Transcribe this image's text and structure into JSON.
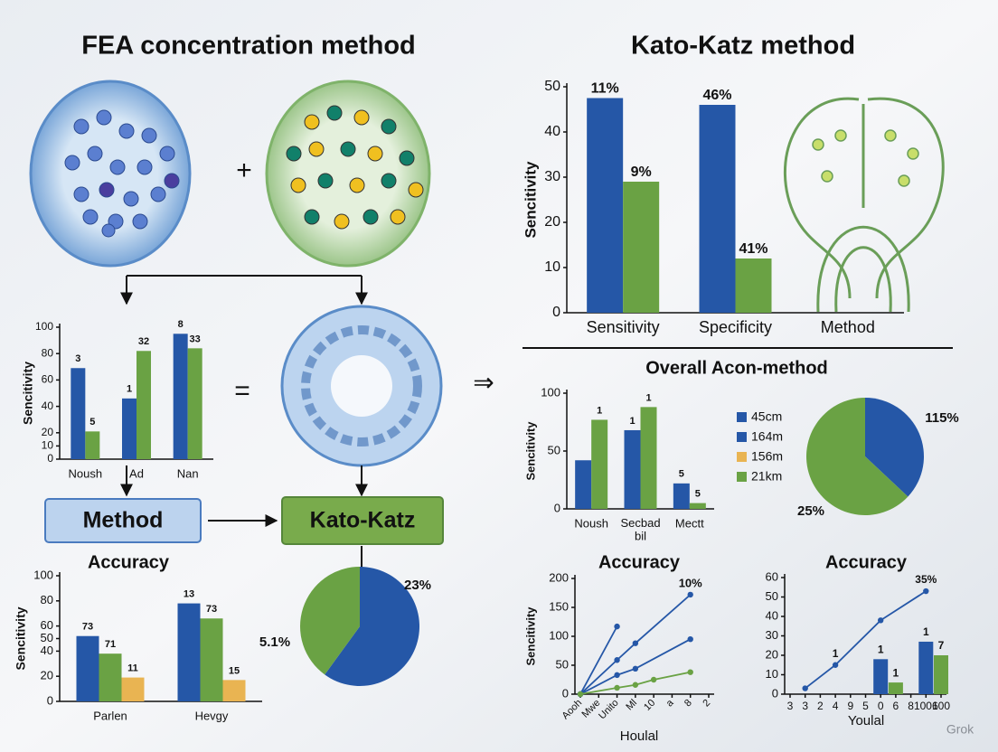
{
  "headings": {
    "left": "FEA concentration method",
    "right": "Kato-Katz method"
  },
  "symbols": {
    "plus": "+",
    "equals": "=",
    "arrow": "⇒"
  },
  "boxes": {
    "method": "Method",
    "kato_katz": "Kato-Katz"
  },
  "watermark": "Grok",
  "chart_data": [
    {
      "type": "bar",
      "y_label": "Sencitivity",
      "categories": [
        "Sensitivity",
        "Specificity",
        "Method"
      ],
      "ylim": [
        0,
        50
      ],
      "yticks": [
        0,
        10,
        20,
        30,
        40,
        50
      ],
      "series": [
        {
          "color": "#2557a7",
          "values": [
            47.5,
            46,
            null
          ],
          "notes": [
            "11%",
            "46%",
            null
          ]
        },
        {
          "color": "#6aa244",
          "values": [
            29,
            12,
            null
          ],
          "notes": [
            "9%",
            "41%",
            null
          ]
        }
      ]
    },
    {
      "type": "bar",
      "y_label": "Sencitivity",
      "categories": [
        "Noush",
        "Ad",
        "Nan"
      ],
      "ylim": [
        0,
        100
      ],
      "yticks": [
        0,
        10,
        20,
        40,
        60,
        80,
        100
      ],
      "series": [
        {
          "color": "#2557a7",
          "values": [
            69,
            46,
            95
          ],
          "notes": [
            "3",
            "1",
            "8"
          ]
        },
        {
          "color": "#6aa244",
          "values": [
            21,
            82,
            84
          ],
          "notes": [
            "5",
            "32",
            "33"
          ]
        }
      ]
    },
    {
      "type": "bar",
      "title": "Accuracy",
      "y_label": "Sencitivity",
      "categories": [
        "Parlen",
        "Hevgy"
      ],
      "ylim": [
        0,
        100
      ],
      "yticks": [
        0,
        20,
        40,
        50,
        60,
        80,
        100
      ],
      "series": [
        {
          "color": "#2557a7",
          "values": [
            52,
            78
          ],
          "notes": [
            "73",
            "13"
          ]
        },
        {
          "color": "#6aa244",
          "values": [
            38,
            66
          ],
          "notes": [
            "71",
            "73"
          ]
        },
        {
          "color": "#e9b452",
          "values": [
            19,
            17
          ],
          "notes": [
            "11",
            "15"
          ]
        }
      ]
    },
    {
      "type": "bar",
      "title": "Overall Acon-method",
      "y_label": "Sencitivity",
      "categories": [
        "Noush",
        "Secbad\nbil",
        "Mectt"
      ],
      "ylim": [
        0,
        100
      ],
      "yticks": [
        0,
        50,
        100
      ],
      "series": [
        {
          "color": "#2557a7",
          "values": [
            42,
            68,
            22
          ],
          "notes": [
            null,
            "1",
            "5"
          ]
        },
        {
          "color": "#6aa244",
          "values": [
            77,
            88,
            5
          ],
          "notes": [
            "1",
            "1",
            "5"
          ]
        }
      ],
      "legend": [
        {
          "label": "45cm",
          "color": "#2557a7"
        },
        {
          "label": "164m",
          "color": "#2557a7"
        },
        {
          "label": "156m",
          "color": "#e9b452"
        },
        {
          "label": "21km",
          "color": "#6aa244"
        }
      ]
    },
    {
      "type": "pie",
      "values": [
        37,
        63
      ],
      "colors": [
        "#2557a7",
        "#6aa244"
      ],
      "notes": [
        "115%",
        "25%"
      ]
    },
    {
      "type": "pie",
      "values": [
        60,
        40
      ],
      "colors": [
        "#2557a7",
        "#6aa244"
      ],
      "notes": [
        "23%",
        "5.1%"
      ]
    },
    {
      "type": "line",
      "title": "Accuracy",
      "y_label": "Sencitivity",
      "x_label": "Houlal",
      "xlim": [
        0,
        7
      ],
      "xticks": [
        {
          "value": 0,
          "label": "Aooh"
        },
        {
          "value": 1,
          "label": "Mwe"
        },
        {
          "value": 2,
          "label": "Unito"
        },
        {
          "value": 3,
          "label": "Ml"
        },
        {
          "value": 4,
          "label": "10"
        },
        {
          "value": 5,
          "label": "a"
        },
        {
          "value": 6,
          "label": "8"
        },
        {
          "value": 7,
          "label": "2"
        }
      ],
      "ylim": [
        0,
        200
      ],
      "yticks": [
        0,
        50,
        100,
        150,
        200
      ],
      "series": [
        {
          "color": "#2557a7",
          "x": [
            0,
            2
          ],
          "values": [
            0,
            117
          ]
        },
        {
          "color": "#2557a7",
          "x": [
            0,
            2,
            3,
            6
          ],
          "values": [
            0,
            59,
            88,
            172
          ],
          "notes": [
            null,
            null,
            null,
            "10%"
          ]
        },
        {
          "color": "#2557a7",
          "x": [
            0,
            2,
            3,
            6
          ],
          "values": [
            0,
            33,
            44,
            95
          ]
        },
        {
          "color": "#6aa244",
          "x": [
            0,
            2,
            3,
            4,
            6
          ],
          "values": [
            0,
            11,
            16,
            25,
            38
          ]
        }
      ]
    },
    {
      "type": "line",
      "title": "Accuracy",
      "x_label": "Youlal",
      "xlim": [
        0,
        10
      ],
      "xticks": [
        {
          "value": 0,
          "label": "3"
        },
        {
          "value": 1,
          "label": "3"
        },
        {
          "value": 2,
          "label": "2"
        },
        {
          "value": 3,
          "label": "4"
        },
        {
          "value": 4,
          "label": "9"
        },
        {
          "value": 5,
          "label": "5"
        },
        {
          "value": 6,
          "label": "0"
        },
        {
          "value": 7,
          "label": "6"
        },
        {
          "value": 8,
          "label": "8"
        },
        {
          "value": 9,
          "label": "1006"
        },
        {
          "value": 10,
          "label": "100"
        }
      ],
      "ylim": [
        0,
        60
      ],
      "yticks": [
        0,
        10,
        20,
        30,
        40,
        50,
        60
      ],
      "series": [
        {
          "kind": "line",
          "color": "#2557a7",
          "x": [
            1,
            3,
            6,
            9
          ],
          "values": [
            3,
            15,
            38,
            53
          ],
          "notes": [
            null,
            "1",
            null,
            "35%"
          ]
        },
        {
          "kind": "bar",
          "color": "#2557a7",
          "x": [
            6,
            9
          ],
          "values": [
            18,
            27
          ],
          "notes": [
            "1",
            "1"
          ]
        },
        {
          "kind": "bar",
          "color": "#6aa244",
          "x": [
            7,
            10
          ],
          "values": [
            6,
            20
          ],
          "notes": [
            "1",
            "7"
          ]
        }
      ]
    }
  ]
}
